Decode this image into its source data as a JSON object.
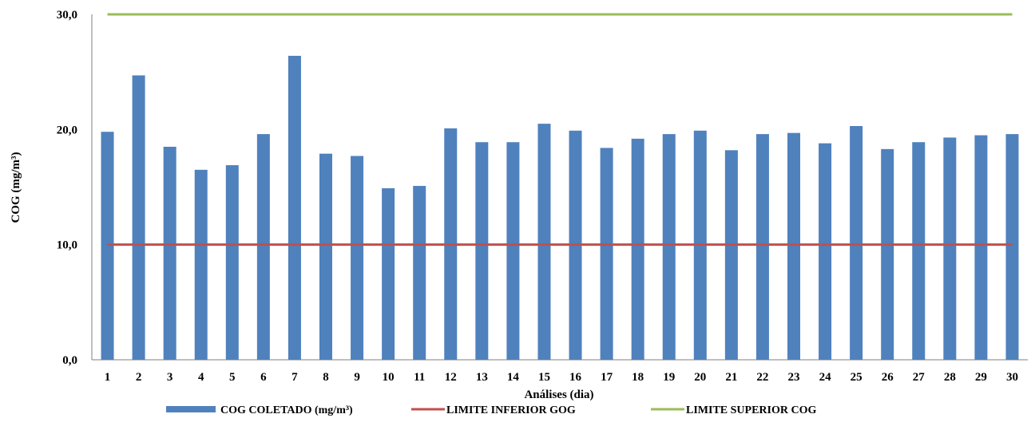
{
  "chart_data": {
    "type": "bar",
    "xlabel": "Análises (dia)",
    "ylabel": "COG (mg/m³)",
    "ylim": [
      0,
      30
    ],
    "yticks": [
      "0,0",
      "10,0",
      "20,0",
      "30,0"
    ],
    "ytick_values": [
      0,
      10,
      20,
      30
    ],
    "categories": [
      "1",
      "2",
      "3",
      "4",
      "5",
      "6",
      "7",
      "8",
      "9",
      "10",
      "11",
      "12",
      "13",
      "14",
      "15",
      "16",
      "17",
      "18",
      "19",
      "20",
      "21",
      "22",
      "23",
      "24",
      "25",
      "26",
      "27",
      "28",
      "29",
      "30"
    ],
    "series": [
      {
        "name": "COG COLETADO (mg/m³)",
        "type": "bar",
        "color": "#4f81bd",
        "values": [
          19.8,
          24.7,
          18.5,
          16.5,
          16.9,
          19.6,
          26.4,
          17.9,
          17.7,
          14.9,
          15.1,
          20.1,
          18.9,
          18.9,
          20.5,
          19.9,
          18.4,
          19.2,
          19.6,
          19.9,
          18.2,
          19.6,
          19.7,
          18.8,
          20.3,
          18.3,
          18.9,
          19.3,
          19.5,
          19.6
        ]
      },
      {
        "name": "LIMITE INFERIOR GOG",
        "type": "line",
        "color": "#c0504d",
        "values": [
          10,
          10,
          10,
          10,
          10,
          10,
          10,
          10,
          10,
          10,
          10,
          10,
          10,
          10,
          10,
          10,
          10,
          10,
          10,
          10,
          10,
          10,
          10,
          10,
          10,
          10,
          10,
          10,
          10,
          10
        ]
      },
      {
        "name": "LIMITE SUPERIOR COG",
        "type": "line",
        "color": "#9bbb59",
        "values": [
          30,
          30,
          30,
          30,
          30,
          30,
          30,
          30,
          30,
          30,
          30,
          30,
          30,
          30,
          30,
          30,
          30,
          30,
          30,
          30,
          30,
          30,
          30,
          30,
          30,
          30,
          30,
          30,
          30,
          30
        ]
      }
    ],
    "legend_position": "bottom",
    "grid": false
  }
}
